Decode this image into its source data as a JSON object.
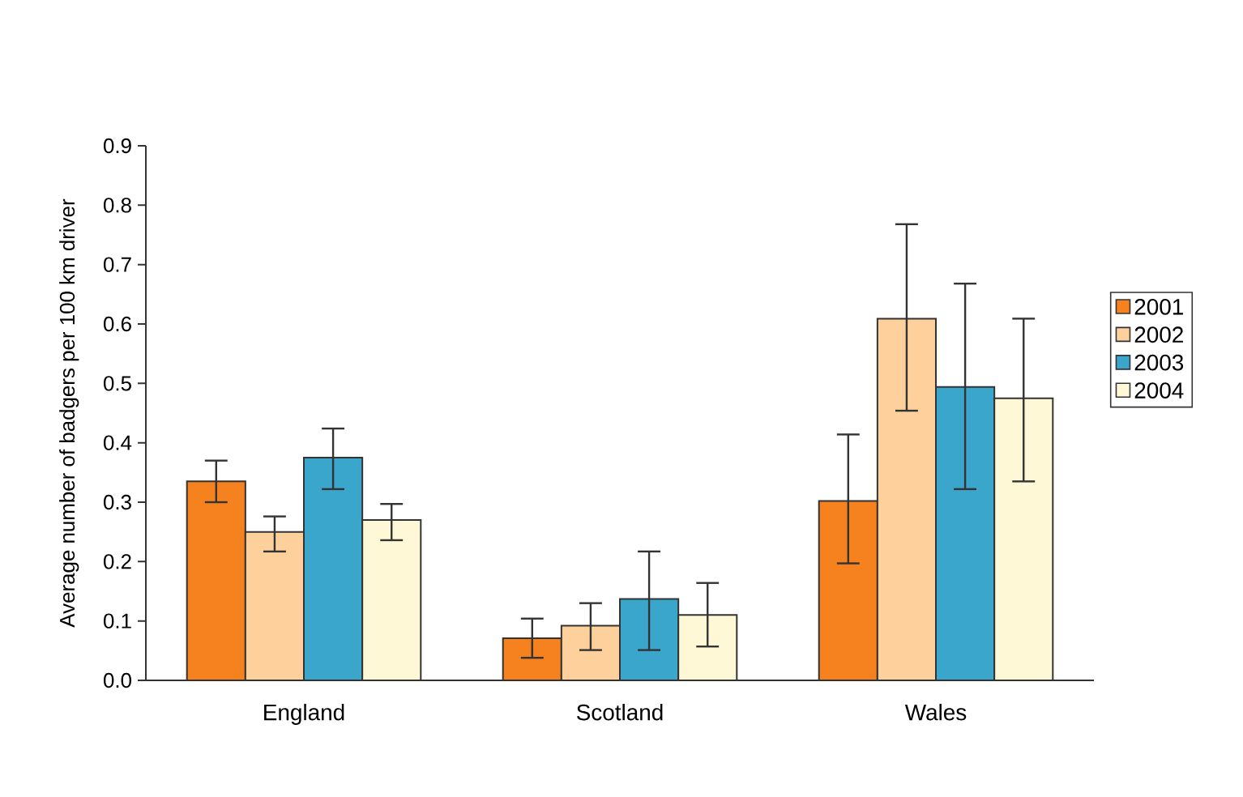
{
  "chart_data": {
    "type": "bar",
    "ylabel": "Average number of badgers per 100 km driver",
    "categories": [
      "England",
      "Scotland",
      "Wales"
    ],
    "series": [
      {
        "name": "2001",
        "color": "#f5821f",
        "values": [
          0.335,
          0.071,
          0.302
        ],
        "errors": [
          [
            0.3,
            0.37
          ],
          [
            0.038,
            0.104
          ],
          [
            0.197,
            0.414
          ]
        ]
      },
      {
        "name": "2002",
        "color": "#fdd09c",
        "values": [
          0.25,
          0.092,
          0.609
        ],
        "errors": [
          [
            0.217,
            0.276
          ],
          [
            0.051,
            0.13
          ],
          [
            0.454,
            0.768
          ]
        ]
      },
      {
        "name": "2003",
        "color": "#3aa6cc",
        "values": [
          0.375,
          0.137,
          0.494
        ],
        "errors": [
          [
            0.322,
            0.424
          ],
          [
            0.051,
            0.217
          ],
          [
            0.322,
            0.668
          ]
        ]
      },
      {
        "name": "2004",
        "color": "#fff8d6",
        "values": [
          0.27,
          0.11,
          0.475
        ],
        "errors": [
          [
            0.236,
            0.297
          ],
          [
            0.057,
            0.164
          ],
          [
            0.335,
            0.609
          ]
        ]
      }
    ],
    "ylim": [
      0,
      0.9
    ],
    "yticks": [
      {
        "value": 0,
        "label": "0.0"
      },
      0.1,
      0.2,
      0.3,
      0.4,
      0.5,
      0.6,
      0.7,
      0.8,
      0.9
    ],
    "grid": false,
    "legend": "right"
  }
}
